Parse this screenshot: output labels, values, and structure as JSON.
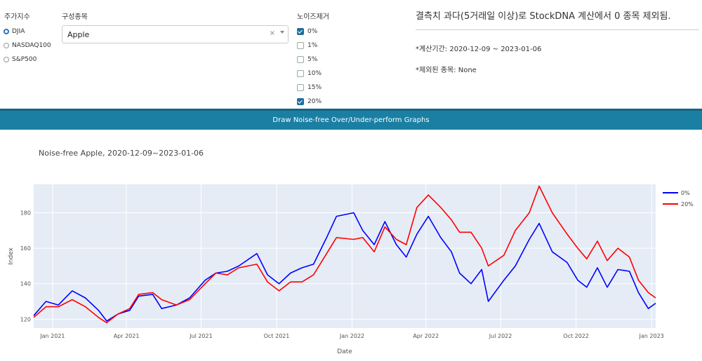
{
  "index_group": {
    "label": "주가지수",
    "options": [
      "DJIA",
      "NASDAQ100",
      "S&P500"
    ],
    "selected": "DJIA"
  },
  "component": {
    "label": "구성종목",
    "value": "Apple",
    "clear": "×"
  },
  "noise": {
    "label": "노이즈제거",
    "options": [
      {
        "label": "0%",
        "checked": true
      },
      {
        "label": "1%",
        "checked": false
      },
      {
        "label": "5%",
        "checked": false
      },
      {
        "label": "10%",
        "checked": false
      },
      {
        "label": "15%",
        "checked": false
      },
      {
        "label": "20%",
        "checked": true
      }
    ]
  },
  "info": {
    "headline": "결측치 과다(5거래일 이상)로 StockDNA 계산에서 0 종목 제외됨.",
    "period": "*계산기간: 2020-12-09 ~ 2023-01-06",
    "excluded": "*제외된 종목: None"
  },
  "draw_button": "Draw Noise-free Over/Under-perform Graphs",
  "chart_data": {
    "type": "line",
    "title": "Noise-free Apple, 2020-12-09~2023-01-06",
    "xlabel": "Date",
    "ylabel": "Index",
    "x_ticks": [
      "Jan 2021",
      "Apr 2021",
      "Jul 2021",
      "Oct 2021",
      "Jan 2022",
      "Apr 2022",
      "Jul 2022",
      "Oct 2022",
      "Jan 2023"
    ],
    "y_ticks": [
      120,
      140,
      160,
      180
    ],
    "ylim": [
      115,
      196
    ],
    "xlim": [
      "2020-12-09",
      "2023-01-06"
    ],
    "legend_position": "top-right",
    "grid": true,
    "series": [
      {
        "name": "0%",
        "color": "#0000ff",
        "points": [
          [
            "2020-12-09",
            122
          ],
          [
            "2020-12-24",
            130
          ],
          [
            "2021-01-08",
            128
          ],
          [
            "2021-01-25",
            136
          ],
          [
            "2021-02-10",
            132
          ],
          [
            "2021-02-26",
            125
          ],
          [
            "2021-03-08",
            119
          ],
          [
            "2021-03-22",
            123
          ],
          [
            "2021-04-05",
            125
          ],
          [
            "2021-04-16",
            133
          ],
          [
            "2021-05-03",
            134
          ],
          [
            "2021-05-14",
            126
          ],
          [
            "2021-06-01",
            128
          ],
          [
            "2021-06-17",
            132
          ],
          [
            "2021-07-06",
            142
          ],
          [
            "2021-07-19",
            146
          ],
          [
            "2021-08-02",
            147
          ],
          [
            "2021-08-16",
            150
          ],
          [
            "2021-09-07",
            157
          ],
          [
            "2021-09-20",
            145
          ],
          [
            "2021-10-04",
            140
          ],
          [
            "2021-10-18",
            146
          ],
          [
            "2021-11-01",
            149
          ],
          [
            "2021-11-15",
            151
          ],
          [
            "2021-12-01",
            166
          ],
          [
            "2021-12-13",
            178
          ],
          [
            "2022-01-03",
            180
          ],
          [
            "2022-01-14",
            170
          ],
          [
            "2022-01-28",
            162
          ],
          [
            "2022-02-10",
            175
          ],
          [
            "2022-02-24",
            162
          ],
          [
            "2022-03-08",
            155
          ],
          [
            "2022-03-21",
            168
          ],
          [
            "2022-04-04",
            178
          ],
          [
            "2022-04-19",
            166
          ],
          [
            "2022-05-02",
            158
          ],
          [
            "2022-05-12",
            146
          ],
          [
            "2022-05-26",
            140
          ],
          [
            "2022-06-08",
            148
          ],
          [
            "2022-06-16",
            130
          ],
          [
            "2022-07-05",
            142
          ],
          [
            "2022-07-19",
            150
          ],
          [
            "2022-08-05",
            165
          ],
          [
            "2022-08-17",
            174
          ],
          [
            "2022-09-02",
            158
          ],
          [
            "2022-09-20",
            152
          ],
          [
            "2022-10-03",
            142
          ],
          [
            "2022-10-14",
            138
          ],
          [
            "2022-10-27",
            149
          ],
          [
            "2022-11-08",
            138
          ],
          [
            "2022-11-21",
            148
          ],
          [
            "2022-12-05",
            147
          ],
          [
            "2022-12-16",
            135
          ],
          [
            "2022-12-28",
            126
          ],
          [
            "2023-01-06",
            129
          ]
        ]
      },
      {
        "name": "20%",
        "color": "#ff0000",
        "points": [
          [
            "2020-12-09",
            121
          ],
          [
            "2020-12-24",
            127
          ],
          [
            "2021-01-08",
            127
          ],
          [
            "2021-01-25",
            131
          ],
          [
            "2021-02-10",
            127
          ],
          [
            "2021-02-26",
            121
          ],
          [
            "2021-03-08",
            118
          ],
          [
            "2021-03-22",
            123
          ],
          [
            "2021-04-05",
            126
          ],
          [
            "2021-04-16",
            134
          ],
          [
            "2021-05-03",
            135
          ],
          [
            "2021-05-14",
            131
          ],
          [
            "2021-06-01",
            128
          ],
          [
            "2021-06-17",
            131
          ],
          [
            "2021-07-06",
            140
          ],
          [
            "2021-07-19",
            146
          ],
          [
            "2021-08-02",
            145
          ],
          [
            "2021-08-16",
            149
          ],
          [
            "2021-09-07",
            151
          ],
          [
            "2021-09-20",
            141
          ],
          [
            "2021-10-04",
            136
          ],
          [
            "2021-10-18",
            141
          ],
          [
            "2021-11-01",
            141
          ],
          [
            "2021-11-15",
            145
          ],
          [
            "2021-12-01",
            157
          ],
          [
            "2021-12-13",
            166
          ],
          [
            "2022-01-03",
            165
          ],
          [
            "2022-01-14",
            166
          ],
          [
            "2022-01-28",
            158
          ],
          [
            "2022-02-10",
            172
          ],
          [
            "2022-02-24",
            165
          ],
          [
            "2022-03-08",
            162
          ],
          [
            "2022-03-21",
            183
          ],
          [
            "2022-04-04",
            190
          ],
          [
            "2022-04-19",
            183
          ],
          [
            "2022-05-02",
            176
          ],
          [
            "2022-05-12",
            169
          ],
          [
            "2022-05-26",
            169
          ],
          [
            "2022-06-08",
            160
          ],
          [
            "2022-06-16",
            150
          ],
          [
            "2022-07-05",
            156
          ],
          [
            "2022-07-19",
            170
          ],
          [
            "2022-08-05",
            180
          ],
          [
            "2022-08-17",
            195
          ],
          [
            "2022-09-02",
            180
          ],
          [
            "2022-09-20",
            168
          ],
          [
            "2022-10-03",
            160
          ],
          [
            "2022-10-14",
            154
          ],
          [
            "2022-10-27",
            164
          ],
          [
            "2022-11-08",
            153
          ],
          [
            "2022-11-21",
            160
          ],
          [
            "2022-12-05",
            155
          ],
          [
            "2022-12-16",
            142
          ],
          [
            "2022-12-28",
            135
          ],
          [
            "2023-01-06",
            132
          ]
        ]
      }
    ]
  }
}
